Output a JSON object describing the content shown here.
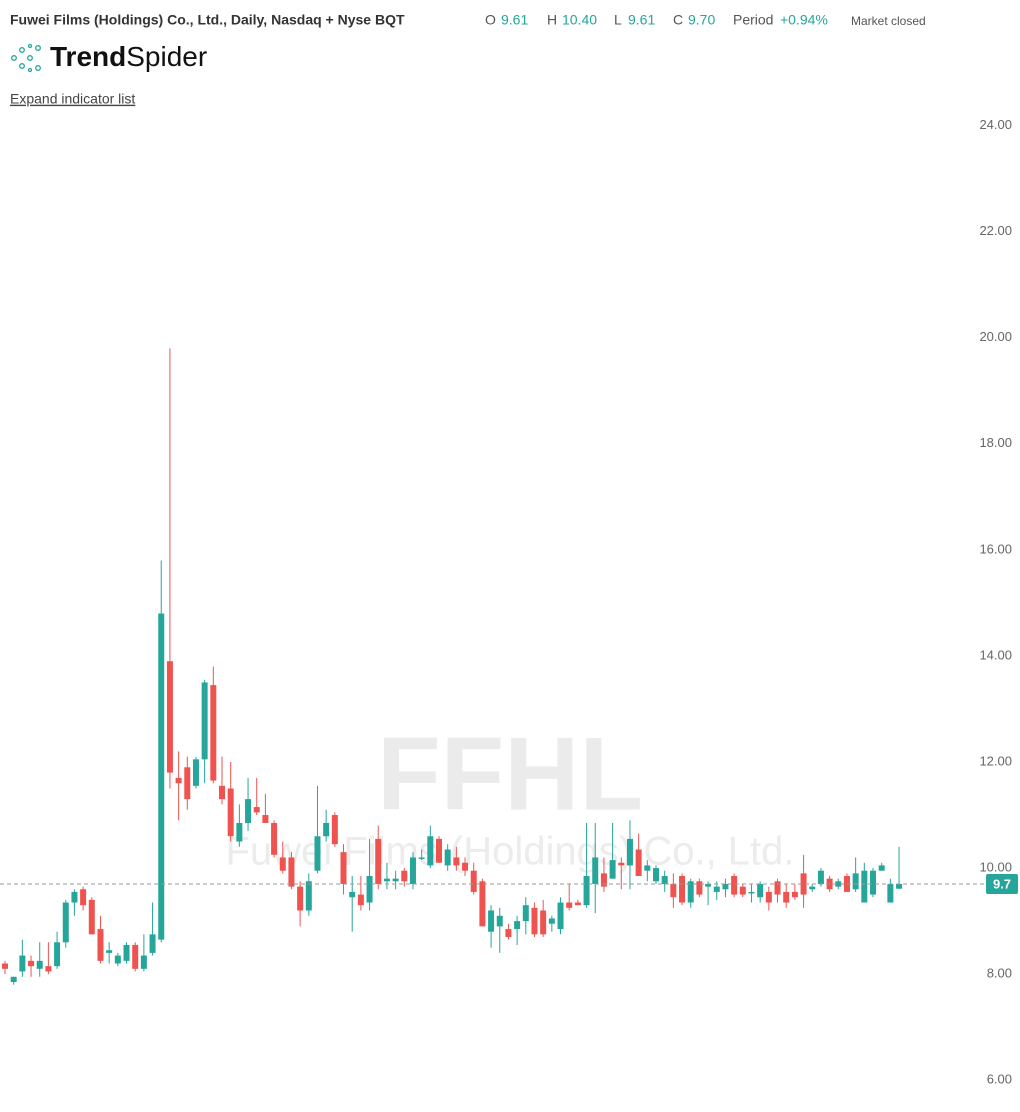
{
  "header": {
    "title": "Fuwei Films (Holdings) Co., Ltd., Daily, Nasdaq + Nyse BQT",
    "ohlc": [
      {
        "label": "O",
        "value": "9.61"
      },
      {
        "label": "H",
        "value": "10.40"
      },
      {
        "label": "L",
        "value": "9.61"
      },
      {
        "label": "C",
        "value": "9.70"
      }
    ],
    "period_label": "Period",
    "period_value": "+0.94%",
    "status": "Market closed"
  },
  "logo": [
    "Trend",
    "Spider"
  ],
  "expand_link": "Expand indicator list",
  "chart_data": {
    "type": "candlestick",
    "watermark": "FFHL",
    "watermark_subtitle": "Fuwei Films (Holdings) Co., Ltd.",
    "up_color": "#26a69a",
    "down_color": "#ef5350",
    "ylim": [
      5.4,
      24.2
    ],
    "yticks": [
      {
        "value": 6,
        "label": "6.00"
      },
      {
        "value": 8,
        "label": "8.00"
      },
      {
        "value": 10,
        "label": "10.00"
      },
      {
        "value": 12,
        "label": "12.00"
      },
      {
        "value": 14,
        "label": "14.00"
      },
      {
        "value": 16,
        "label": "16.00"
      },
      {
        "value": 18,
        "label": "18.00"
      },
      {
        "value": 20,
        "label": "20.00"
      },
      {
        "value": 22,
        "label": "22.00"
      },
      {
        "value": 24,
        "label": "24.00"
      }
    ],
    "last_price": 9.7,
    "open": [
      8.2,
      7.85,
      8.05,
      8.25,
      8.1,
      8.15,
      8.15,
      8.6,
      9.35,
      9.6,
      9.4,
      8.85,
      8.4,
      8.2,
      8.25,
      8.55,
      8.1,
      8.4,
      8.65,
      13.9,
      11.7,
      11.9,
      11.55,
      12.05,
      13.45,
      11.55,
      11.5,
      10.5,
      10.85,
      11.15,
      11.0,
      10.85,
      10.2,
      10.2,
      9.65,
      9.2,
      9.95,
      10.6,
      11.0,
      10.3,
      9.45,
      9.5,
      9.35,
      10.55,
      9.75,
      9.75,
      9.95,
      9.7,
      10.2,
      10.05,
      10.55,
      10.05,
      10.2,
      10.1,
      9.95,
      9.75,
      8.8,
      8.9,
      8.85,
      8.85,
      9.0,
      9.25,
      9.2,
      8.95,
      8.85,
      9.35,
      9.35,
      9.3,
      9.7,
      9.9,
      9.8,
      10.1,
      10.05,
      10.35,
      9.95,
      9.75,
      9.7,
      9.7,
      9.85,
      9.35,
      9.75,
      9.65,
      9.55,
      9.6,
      9.85,
      9.65,
      9.55,
      9.45,
      9.55,
      9.75,
      9.55,
      9.55,
      9.9,
      9.6,
      9.7,
      9.8,
      9.65,
      9.85,
      9.6,
      9.35,
      9.5,
      9.95,
      9.35,
      9.61
    ],
    "high": [
      8.25,
      7.95,
      8.65,
      8.35,
      8.6,
      8.6,
      8.8,
      9.4,
      9.6,
      9.65,
      9.45,
      9.1,
      8.6,
      8.4,
      8.6,
      8.6,
      8.75,
      9.35,
      15.8,
      19.8,
      12.2,
      12.1,
      12.1,
      13.55,
      13.8,
      12.1,
      12.0,
      11.2,
      11.7,
      11.7,
      11.4,
      10.9,
      10.5,
      10.3,
      9.75,
      9.9,
      11.55,
      11.1,
      11.05,
      10.45,
      9.85,
      9.85,
      10.55,
      10.8,
      10.1,
      9.95,
      10.0,
      10.3,
      10.35,
      10.8,
      10.6,
      10.45,
      10.4,
      10.2,
      10.1,
      9.8,
      9.3,
      9.25,
      8.95,
      9.1,
      9.45,
      9.35,
      9.4,
      9.1,
      9.45,
      9.7,
      9.4,
      10.85,
      10.85,
      10.2,
      10.85,
      10.2,
      10.9,
      10.65,
      10.15,
      10.05,
      9.95,
      9.9,
      9.9,
      9.8,
      9.8,
      9.75,
      9.75,
      9.8,
      9.9,
      9.7,
      9.7,
      9.75,
      9.65,
      9.8,
      9.7,
      9.7,
      10.25,
      9.7,
      10.0,
      9.85,
      9.8,
      9.9,
      10.2,
      10.1,
      10.0,
      10.1,
      9.8,
      10.4
    ],
    "low": [
      8.0,
      7.8,
      7.95,
      7.95,
      7.95,
      8.0,
      8.1,
      8.5,
      9.1,
      9.2,
      8.75,
      8.2,
      8.2,
      8.15,
      8.2,
      8.05,
      8.05,
      8.35,
      8.6,
      11.5,
      10.9,
      11.1,
      11.5,
      11.6,
      11.6,
      11.2,
      10.5,
      10.4,
      10.7,
      11.0,
      10.85,
      10.2,
      9.9,
      9.6,
      8.9,
      9.1,
      9.9,
      10.5,
      10.4,
      9.5,
      8.8,
      9.2,
      9.2,
      9.6,
      9.6,
      9.6,
      9.65,
      9.6,
      10.15,
      10.0,
      10.1,
      9.95,
      9.95,
      9.85,
      9.5,
      8.9,
      8.5,
      8.4,
      8.65,
      8.55,
      8.75,
      8.7,
      8.7,
      8.8,
      8.75,
      9.2,
      9.3,
      9.25,
      9.15,
      9.55,
      9.8,
      9.6,
      9.6,
      9.85,
      9.75,
      9.7,
      9.55,
      9.25,
      9.3,
      9.25,
      9.45,
      9.3,
      9.4,
      9.45,
      9.45,
      9.45,
      9.35,
      9.35,
      9.2,
      9.35,
      9.25,
      9.4,
      9.25,
      9.55,
      9.65,
      9.55,
      9.6,
      9.55,
      9.55,
      9.35,
      9.45,
      9.95,
      9.35,
      9.61
    ],
    "close": [
      8.1,
      7.95,
      8.35,
      8.15,
      8.25,
      8.05,
      8.6,
      9.35,
      9.55,
      9.3,
      8.75,
      8.25,
      8.45,
      8.35,
      8.55,
      8.1,
      8.35,
      8.75,
      14.8,
      11.8,
      11.6,
      11.3,
      12.05,
      13.5,
      11.65,
      11.3,
      10.6,
      10.85,
      11.3,
      11.05,
      10.85,
      10.25,
      9.95,
      9.65,
      9.2,
      9.75,
      10.6,
      10.85,
      10.45,
      9.7,
      9.55,
      9.3,
      9.85,
      9.7,
      9.8,
      9.8,
      9.75,
      10.2,
      10.2,
      10.6,
      10.1,
      10.35,
      10.05,
      9.95,
      9.55,
      8.9,
      9.2,
      9.1,
      8.7,
      9.0,
      9.3,
      8.75,
      8.75,
      9.05,
      9.35,
      9.25,
      9.3,
      9.85,
      10.2,
      9.65,
      10.15,
      10.05,
      10.55,
      9.85,
      10.05,
      10.0,
      9.85,
      9.45,
      9.35,
      9.75,
      9.5,
      9.7,
      9.65,
      9.7,
      9.5,
      9.5,
      9.55,
      9.7,
      9.35,
      9.5,
      9.35,
      9.45,
      9.5,
      9.65,
      9.95,
      9.6,
      9.75,
      9.55,
      9.9,
      9.95,
      9.95,
      10.05,
      9.7,
      9.7
    ]
  }
}
